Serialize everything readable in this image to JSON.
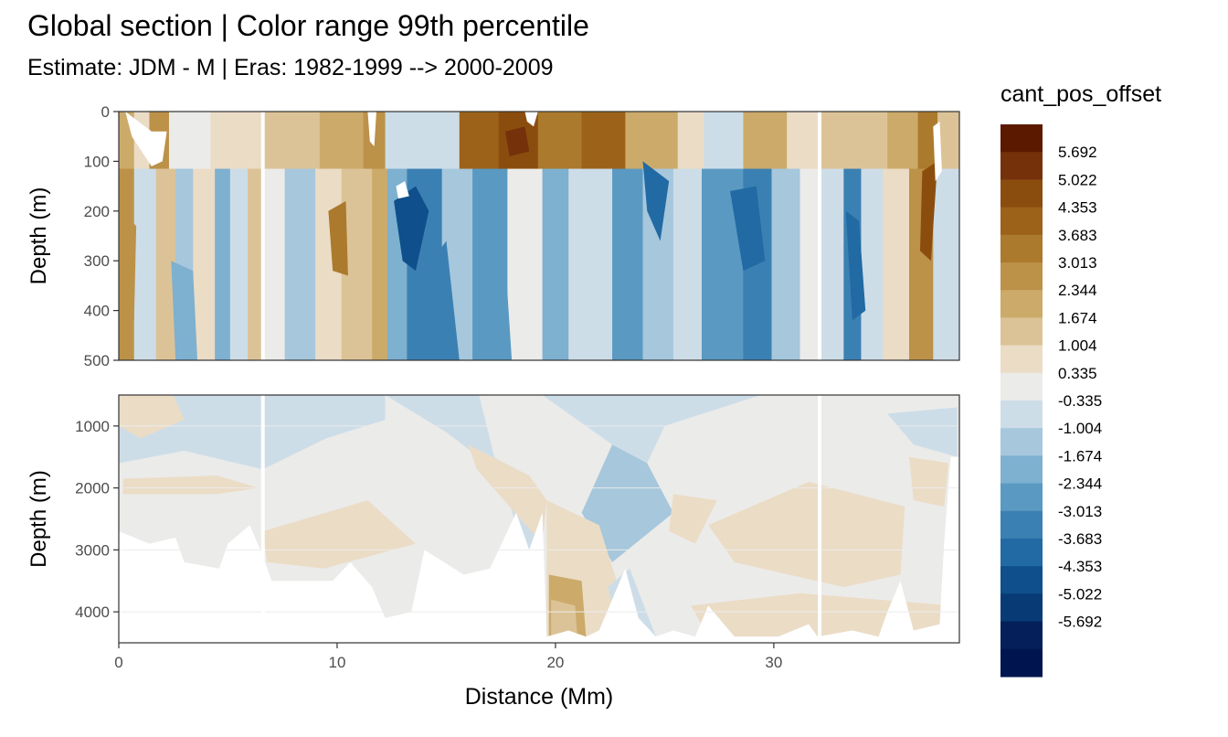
{
  "title": "Global section | Color range 99th percentile",
  "subtitle": "Estimate: JDM - M | Eras: 1982-1999 --> 2000-2009",
  "chart_data": {
    "type": "heatmap",
    "xlabel": "Distance (Mm)",
    "x_ticks": [
      "0",
      "10",
      "20",
      "30"
    ],
    "xlim": [
      0,
      38.5
    ],
    "panels": [
      {
        "ylabel": "Depth (m)",
        "y_ticks": [
          "0",
          "100",
          "200",
          "300",
          "400",
          "500"
        ],
        "ylim": [
          0,
          500
        ],
        "y_reversed": true
      },
      {
        "ylabel": "Depth (m)",
        "y_ticks": [
          "1000",
          "2000",
          "3000",
          "4000"
        ],
        "ylim": [
          500,
          4500
        ],
        "y_reversed": true
      }
    ],
    "legend": {
      "title": "cant_pos_offset",
      "position": "right",
      "labels": [
        "5.692",
        "5.022",
        "4.353",
        "3.683",
        "3.013",
        "2.344",
        "1.674",
        "1.004",
        "0.335",
        "-0.335",
        "-1.004",
        "-1.674",
        "-2.344",
        "-3.013",
        "-3.683",
        "-4.353",
        "-5.022",
        "-5.692"
      ],
      "colors": [
        "#5b1a00",
        "#74310a",
        "#8b4d0e",
        "#9c6219",
        "#ab7a2c",
        "#bc9148",
        "#ccaa6a",
        "#dcc397",
        "#ebdcc6",
        "#ebebe9",
        "#cddde8",
        "#a6c7dc",
        "#7eb0d0",
        "#5a99c2",
        "#3b80b3",
        "#216aa3",
        "#0f4f8b",
        "#083a76",
        "#041f5a",
        "#001450"
      ]
    },
    "gaps_x": [
      6.6,
      32.1
    ],
    "grid": true
  }
}
